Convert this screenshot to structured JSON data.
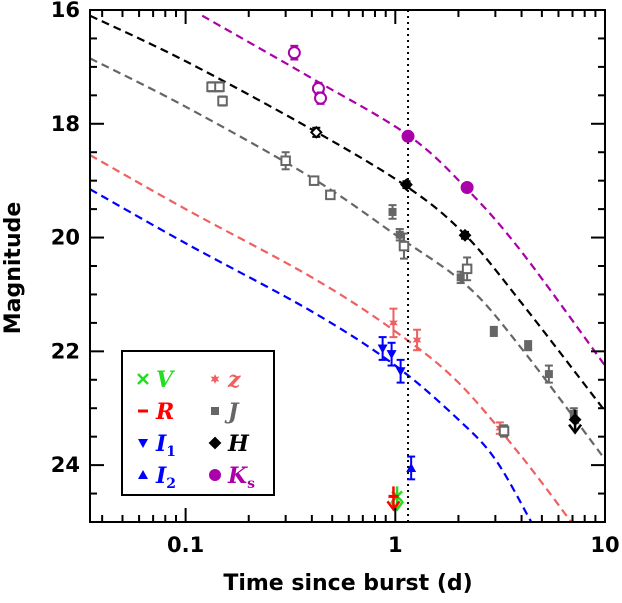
{
  "chart_data": {
    "type": "scatter",
    "title": "",
    "xlabel": "Time since burst (d)",
    "ylabel": "Magnitude",
    "xscale": "log",
    "xlim": [
      0.035,
      10
    ],
    "ylim": [
      25,
      16
    ],
    "x_ticks": [
      0.1,
      1,
      10
    ],
    "x_tick_labels": [
      "0.1",
      "1",
      "10"
    ],
    "y_ticks": [
      16,
      18,
      20,
      22,
      24
    ],
    "y_tick_labels": [
      "16",
      "18",
      "20",
      "22",
      "24"
    ],
    "grid": false,
    "legend_position": "bottom-left",
    "vertical_line_x": 1.15,
    "series": [
      {
        "name": "V",
        "sub": "",
        "color": "#22dd22",
        "marker": "cross",
        "points": [
          {
            "x": 1.02,
            "y": 24.55,
            "upper_limit": true
          }
        ]
      },
      {
        "name": "R",
        "sub": "",
        "color": "#ff0000",
        "marker": "dash",
        "points": [
          {
            "x": 0.98,
            "y": 24.55,
            "upper_limit": true
          }
        ]
      },
      {
        "name": "I",
        "sub": "1",
        "color": "#0000ff",
        "marker": "tri-down",
        "points": [
          {
            "x": 0.87,
            "y": 21.95,
            "err": 0.2
          },
          {
            "x": 0.96,
            "y": 22.05,
            "err": 0.2
          },
          {
            "x": 1.06,
            "y": 22.35,
            "err": 0.2
          }
        ]
      },
      {
        "name": "I",
        "sub": "2",
        "color": "#0000ff",
        "marker": "tri-up",
        "points": [
          {
            "x": 1.19,
            "y": 24.05,
            "err": 0.2
          }
        ]
      },
      {
        "name": "z",
        "sub": "",
        "color": "#f06060",
        "marker": "star",
        "points": [
          {
            "x": 0.98,
            "y": 21.5,
            "err": 0.25
          },
          {
            "x": 1.27,
            "y": 21.8,
            "err": 0.18
          },
          {
            "x": 3.15,
            "y": 23.35,
            "err": 0.1
          }
        ]
      },
      {
        "name": "J",
        "sub": "",
        "color": "#666666",
        "marker": "square-filled",
        "points": [
          {
            "x": 0.97,
            "y": 19.55,
            "err": 0.12
          },
          {
            "x": 1.05,
            "y": 19.95,
            "err": 0.1
          },
          {
            "x": 2.05,
            "y": 20.7,
            "err": 0.1
          },
          {
            "x": 2.95,
            "y": 21.65,
            "err": 0.08
          },
          {
            "x": 4.3,
            "y": 21.9,
            "err": 0.08
          },
          {
            "x": 5.4,
            "y": 22.4,
            "err": 0.15
          },
          {
            "x": 7.1,
            "y": 23.1,
            "err": 0.1
          }
        ]
      },
      {
        "name": "H",
        "sub": "",
        "color": "#000000",
        "marker": "diamond",
        "points": [
          {
            "x": 0.42,
            "y": 18.15,
            "err": 0.08,
            "open": true
          },
          {
            "x": 1.13,
            "y": 19.07,
            "err": 0.06
          },
          {
            "x": 2.15,
            "y": 19.96,
            "err": 0.06
          },
          {
            "x": 7.2,
            "y": 23.2,
            "upper_limit": true
          }
        ]
      },
      {
        "name": "K",
        "sub": "s",
        "color": "#aa00aa",
        "marker": "circle",
        "points": [
          {
            "x": 0.33,
            "y": 16.75,
            "err": 0.12,
            "open": true
          },
          {
            "x": 0.43,
            "y": 17.38,
            "err": 0.1,
            "open": true
          },
          {
            "x": 0.44,
            "y": 17.55,
            "err": 0.1,
            "open": true
          },
          {
            "x": 1.15,
            "y": 18.22,
            "err": 0.05
          },
          {
            "x": 2.2,
            "y": 19.12,
            "err": 0.05
          }
        ]
      },
      {
        "name": "",
        "sub": "",
        "color": "#666666",
        "marker": "square-open",
        "legend": false,
        "points": [
          {
            "x": 0.133,
            "y": 17.35,
            "err": 0.08
          },
          {
            "x": 0.145,
            "y": 17.35,
            "err": 0.08
          },
          {
            "x": 0.15,
            "y": 17.6,
            "err": 0.08
          },
          {
            "x": 0.3,
            "y": 18.65,
            "err": 0.15
          },
          {
            "x": 0.41,
            "y": 19.0,
            "err": 0.07
          },
          {
            "x": 0.49,
            "y": 19.25,
            "err": 0.07
          },
          {
            "x": 1.1,
            "y": 20.15,
            "err": 0.22
          },
          {
            "x": 2.2,
            "y": 20.55,
            "err": 0.2
          },
          {
            "x": 3.3,
            "y": 23.4,
            "err": 0.1
          }
        ]
      }
    ],
    "fit_curves": [
      {
        "color": "#aa00aa",
        "points": [
          [
            0.12,
            16.1
          ],
          [
            0.4,
            17.2
          ],
          [
            1.15,
            18.2
          ],
          [
            2.2,
            19.15
          ],
          [
            4.0,
            20.25
          ],
          [
            10.0,
            22.25
          ]
        ]
      },
      {
        "color": "#000000",
        "points": [
          [
            0.035,
            16.1
          ],
          [
            0.1,
            16.9
          ],
          [
            0.4,
            18.1
          ],
          [
            1.13,
            19.1
          ],
          [
            2.15,
            19.95
          ],
          [
            4.0,
            21.15
          ],
          [
            10.0,
            23.05
          ]
        ]
      },
      {
        "color": "#666666",
        "points": [
          [
            0.035,
            16.85
          ],
          [
            0.1,
            17.7
          ],
          [
            0.4,
            18.95
          ],
          [
            1.0,
            19.95
          ],
          [
            2.2,
            20.85
          ],
          [
            4.0,
            21.95
          ],
          [
            10.0,
            23.9
          ]
        ]
      },
      {
        "color": "#f06060",
        "points": [
          [
            0.035,
            18.55
          ],
          [
            0.1,
            19.5
          ],
          [
            0.4,
            20.7
          ],
          [
            1.0,
            21.65
          ],
          [
            2.0,
            22.55
          ],
          [
            4.0,
            23.85
          ],
          [
            6.9,
            25.0
          ]
        ]
      },
      {
        "color": "#0000ff",
        "points": [
          [
            0.035,
            19.15
          ],
          [
            0.1,
            20.1
          ],
          [
            0.4,
            21.3
          ],
          [
            1.0,
            22.25
          ],
          [
            2.0,
            23.2
          ],
          [
            3.0,
            23.9
          ],
          [
            4.45,
            25.0
          ]
        ]
      }
    ]
  }
}
